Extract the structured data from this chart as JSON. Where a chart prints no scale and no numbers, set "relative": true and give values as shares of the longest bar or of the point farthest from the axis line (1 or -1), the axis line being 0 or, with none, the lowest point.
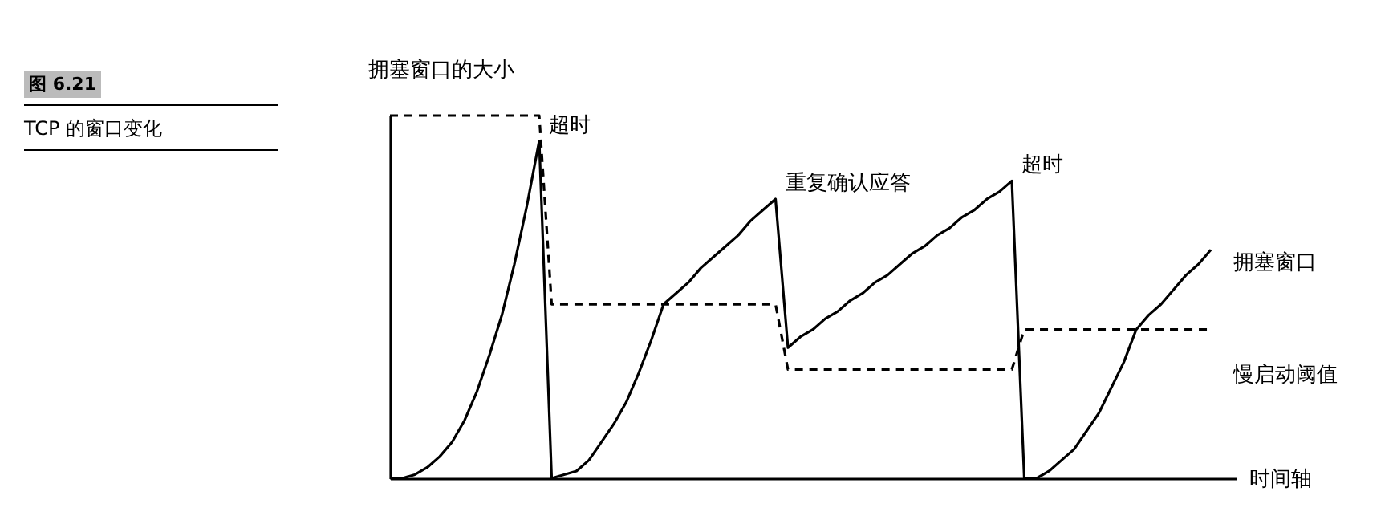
{
  "chart_data": {
    "type": "line",
    "title": "图 6.21",
    "subtitle": "TCP 的窗口变化",
    "xlabel": "时间轴",
    "ylabel": "拥塞窗口的大小",
    "relative": true,
    "marker": "none",
    "annotations": [
      "超时",
      "重复确认应答",
      "超时"
    ],
    "categories": [
      null,
      null,
      null,
      null,
      null,
      null,
      null,
      null,
      null,
      null,
      null,
      null,
      null,
      null,
      null,
      null,
      null,
      null,
      null,
      null,
      null,
      null,
      null,
      null,
      null,
      null,
      null,
      null,
      null,
      null,
      null,
      null,
      null,
      null,
      null,
      null,
      null,
      null,
      null,
      null,
      null,
      null,
      null,
      null,
      null,
      null,
      null,
      null,
      null,
      null,
      null,
      null,
      null,
      null,
      null,
      null,
      null,
      null,
      null,
      null,
      null,
      null,
      null,
      null,
      null,
      null,
      null
    ],
    "series": [
      {
        "name": "拥塞窗口",
        "color": "#000000",
        "line_style": "solid",
        "values": [
          0,
          0,
          0.01,
          0.03,
          0.06,
          0.1,
          0.16,
          0.24,
          0.34,
          0.45,
          0.59,
          0.75,
          0.93,
          0,
          0.01,
          0.02,
          0.05,
          0.1,
          0.15,
          0.21,
          0.29,
          0.38,
          0.48,
          0.51,
          0.54,
          0.58,
          0.61,
          0.64,
          0.67,
          0.71,
          0.74,
          0.77,
          0.36,
          0.39,
          0.41,
          0.44,
          0.46,
          0.49,
          0.51,
          0.54,
          0.56,
          0.59,
          0.62,
          0.64,
          0.67,
          0.69,
          0.72,
          0.74,
          0.77,
          0.79,
          0.82,
          0,
          0,
          0.02,
          0.05,
          0.08,
          0.13,
          0.18,
          0.25,
          0.32,
          0.41,
          0.45,
          0.48,
          0.52,
          0.56,
          0.59,
          0.63
        ]
      },
      {
        "name": "慢启动阈值",
        "color": "#000000",
        "line_style": "dashed",
        "values": [
          1,
          1,
          1,
          1,
          1,
          1,
          1,
          1,
          1,
          1,
          1,
          1,
          1,
          0.48,
          0.48,
          0.48,
          0.48,
          0.48,
          0.48,
          0.48,
          0.48,
          0.48,
          0.48,
          0.48,
          0.48,
          0.48,
          0.48,
          0.48,
          0.48,
          0.48,
          0.48,
          0.48,
          0.3,
          0.3,
          0.3,
          0.3,
          0.3,
          0.3,
          0.3,
          0.3,
          0.3,
          0.3,
          0.3,
          0.3,
          0.3,
          0.3,
          0.3,
          0.3,
          0.3,
          0.3,
          0.3,
          0.41,
          0.41,
          0.41,
          0.41,
          0.41,
          0.41,
          0.41,
          0.41,
          0.41,
          0.41,
          0.41,
          0.41,
          0.41,
          0.41,
          0.41,
          0.41
        ]
      }
    ]
  }
}
